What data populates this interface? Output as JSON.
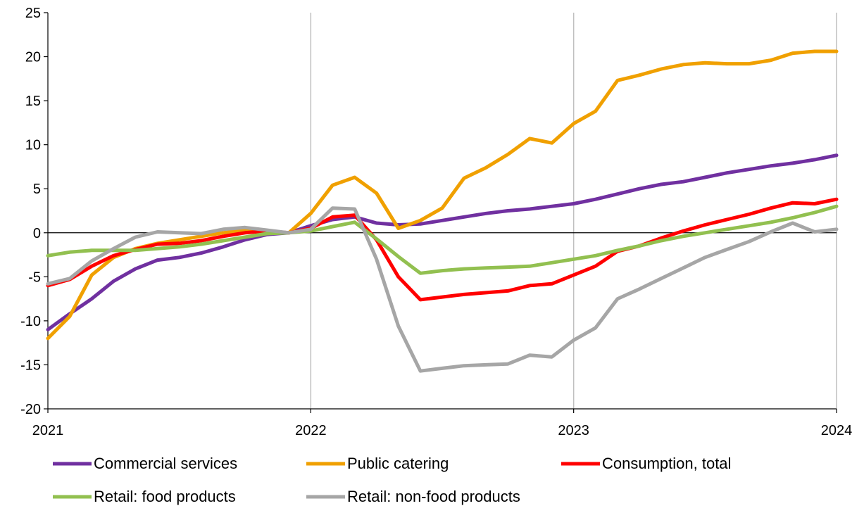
{
  "chart_data": {
    "type": "line",
    "title": "",
    "xlabel": "",
    "ylabel": "",
    "ylim": [
      -20,
      25
    ],
    "yticks": [
      -20,
      -15,
      -10,
      -5,
      0,
      5,
      10,
      15,
      20,
      25
    ],
    "xlim": [
      2021.0,
      2024.0
    ],
    "xticks": [
      "2021",
      "2022",
      "2023",
      "2024"
    ],
    "grid": "vertical at years",
    "legend": "bottom",
    "x": [
      2021.0,
      2021.083,
      2021.167,
      2021.25,
      2021.333,
      2021.417,
      2021.5,
      2021.583,
      2021.667,
      2021.75,
      2021.833,
      2021.917,
      2022.0,
      2022.083,
      2022.167,
      2022.25,
      2022.333,
      2022.417,
      2022.5,
      2022.583,
      2022.667,
      2022.75,
      2022.833,
      2022.917,
      2023.0,
      2023.083,
      2023.167,
      2023.25,
      2023.333,
      2023.417,
      2023.5,
      2023.583,
      2023.667,
      2023.75,
      2023.833,
      2023.917,
      2024.0
    ],
    "series": [
      {
        "name": "Commercial services",
        "color": "#7030A0",
        "values": [
          -11,
          -9.2,
          -7.5,
          -5.5,
          -4.1,
          -3.1,
          -2.8,
          -2.3,
          -1.6,
          -0.8,
          -0.2,
          0,
          0.8,
          1.5,
          1.8,
          1.1,
          0.9,
          1.0,
          1.4,
          1.8,
          2.2,
          2.5,
          2.7,
          3.0,
          3.3,
          3.8,
          4.4,
          5.0,
          5.5,
          5.8,
          6.3,
          6.8,
          7.2,
          7.6,
          7.9,
          8.3,
          8.8
        ]
      },
      {
        "name": "Public catering",
        "color": "#F0A000",
        "values": [
          -12,
          -9.5,
          -4.8,
          -2.8,
          -1.8,
          -1.2,
          -0.8,
          -0.4,
          0,
          0.3,
          0.1,
          0,
          2.2,
          5.4,
          6.3,
          4.5,
          0.5,
          1.4,
          2.8,
          6.2,
          7.4,
          8.9,
          10.7,
          10.2,
          12.4,
          13.8,
          17.3,
          17.9,
          18.6,
          19.1,
          19.3,
          19.2,
          19.2,
          19.6,
          20.4,
          20.6,
          20.6
        ]
      },
      {
        "name": "Consumption, total",
        "color": "#FF0000",
        "values": [
          -6,
          -5.3,
          -3.8,
          -2.6,
          -1.9,
          -1.3,
          -1.2,
          -0.9,
          -0.4,
          0,
          0.2,
          0,
          0.5,
          1.8,
          2.0,
          -0.8,
          -5.0,
          -7.6,
          -7.3,
          -7.0,
          -6.8,
          -6.6,
          -6.0,
          -5.8,
          -4.8,
          -3.8,
          -2.1,
          -1.5,
          -0.6,
          0.2,
          0.9,
          1.5,
          2.1,
          2.8,
          3.4,
          3.3,
          3.8
        ]
      },
      {
        "name": "Retail: food products",
        "color": "#92C050",
        "values": [
          -2.6,
          -2.2,
          -2.0,
          -2.0,
          -2.0,
          -1.8,
          -1.6,
          -1.3,
          -0.9,
          -0.5,
          -0.1,
          0,
          0.2,
          0.7,
          1.2,
          -0.7,
          -2.7,
          -4.6,
          -4.3,
          -4.1,
          -4.0,
          -3.9,
          -3.8,
          -3.4,
          -3.0,
          -2.6,
          -2.0,
          -1.5,
          -0.9,
          -0.4,
          0,
          0.4,
          0.8,
          1.2,
          1.7,
          2.3,
          3.0
        ]
      },
      {
        "name": "Retail: non-food products",
        "color": "#A6A6A6",
        "values": [
          -5.8,
          -5.2,
          -3.2,
          -1.8,
          -0.5,
          0.1,
          0,
          -0.1,
          0.4,
          0.6,
          0.3,
          0,
          0.4,
          2.8,
          2.7,
          -3.0,
          -10.6,
          -15.7,
          -15.4,
          -15.1,
          -15.0,
          -14.9,
          -13.9,
          -14.1,
          -12.2,
          -10.8,
          -7.5,
          -6.4,
          -5.2,
          -4.0,
          -2.8,
          -1.9,
          -1.0,
          0.1,
          1.1,
          0.1,
          0.4
        ]
      }
    ]
  }
}
